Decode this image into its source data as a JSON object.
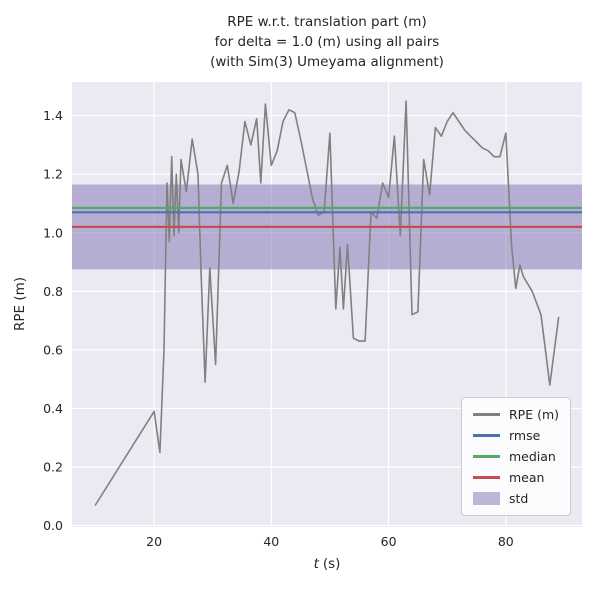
{
  "chart_data": {
    "type": "line",
    "title_lines": [
      "RPE w.r.t. translation part (m)",
      "for delta = 1.0 (m) using all pairs",
      "(with Sim(3) Umeyama alignment)"
    ],
    "xlabel_var": "t",
    "xlabel_unit": "(s)",
    "ylabel": "RPE (m)",
    "xlim": [
      6,
      93
    ],
    "ylim": [
      -0.005,
      1.515
    ],
    "x_ticks": [
      20,
      40,
      60,
      80
    ],
    "y_ticks": [
      0.0,
      0.2,
      0.4,
      0.6,
      0.8,
      1.0,
      1.2,
      1.4
    ],
    "grid": true,
    "plot_bg": "#eaeaf2",
    "grid_color": "#ffffff",
    "series": [
      {
        "name": "RPE (m)",
        "color": "#808080",
        "x": [
          10,
          20,
          21,
          21.7,
          22.2,
          22.6,
          23.0,
          23.4,
          23.8,
          24.2,
          24.6,
          25.5,
          26.5,
          27.5,
          28,
          28.7,
          29.5,
          30.5,
          31.5,
          32.5,
          33.5,
          34.5,
          35.5,
          36.5,
          37.5,
          38.2,
          39,
          40,
          41,
          42,
          43,
          44,
          45,
          46,
          47,
          48,
          49,
          50,
          51,
          51.7,
          52.3,
          53,
          54,
          55,
          56,
          57,
          58,
          59,
          60,
          61,
          62,
          63,
          64,
          65,
          66,
          67,
          68,
          69,
          70,
          71,
          72,
          73,
          74,
          75,
          76,
          77,
          78,
          79,
          80,
          81,
          81.7,
          82.4,
          83,
          84.5,
          86,
          87.5,
          89
        ],
        "y": [
          0.07,
          0.39,
          0.25,
          0.6,
          1.17,
          0.97,
          1.26,
          0.99,
          1.2,
          1.0,
          1.25,
          1.14,
          1.32,
          1.2,
          0.87,
          0.49,
          0.88,
          0.55,
          1.17,
          1.23,
          1.1,
          1.21,
          1.38,
          1.3,
          1.39,
          1.17,
          1.44,
          1.23,
          1.28,
          1.38,
          1.42,
          1.41,
          1.32,
          1.22,
          1.12,
          1.06,
          1.07,
          1.34,
          0.74,
          0.95,
          0.74,
          0.96,
          0.64,
          0.63,
          0.63,
          1.07,
          1.05,
          1.17,
          1.12,
          1.33,
          0.99,
          1.45,
          0.72,
          0.73,
          1.25,
          1.13,
          1.36,
          1.33,
          1.38,
          1.41,
          1.38,
          1.35,
          1.33,
          1.31,
          1.29,
          1.28,
          1.26,
          1.26,
          1.34,
          0.95,
          0.81,
          0.89,
          0.85,
          0.8,
          0.72,
          0.48,
          0.71
        ]
      }
    ],
    "hlines": [
      {
        "name": "rmse",
        "color": "#4c72b0",
        "value": 1.07
      },
      {
        "name": "median",
        "color": "#55a868",
        "value": 1.085
      },
      {
        "name": "mean",
        "color": "#c44e52",
        "value": 1.02
      }
    ],
    "band": {
      "name": "std",
      "color": "#8172b2",
      "alpha": 0.5,
      "min": 0.875,
      "max": 1.165
    },
    "legend": [
      {
        "label": "RPE (m)",
        "type": "line",
        "color": "#808080"
      },
      {
        "label": "rmse",
        "type": "line",
        "color": "#4c72b0"
      },
      {
        "label": "median",
        "type": "line",
        "color": "#55a868"
      },
      {
        "label": "mean",
        "type": "line",
        "color": "#c44e52"
      },
      {
        "label": "std",
        "type": "patch",
        "color": "#8172b2",
        "alpha": 0.5
      }
    ],
    "legend_position": "lower right"
  }
}
